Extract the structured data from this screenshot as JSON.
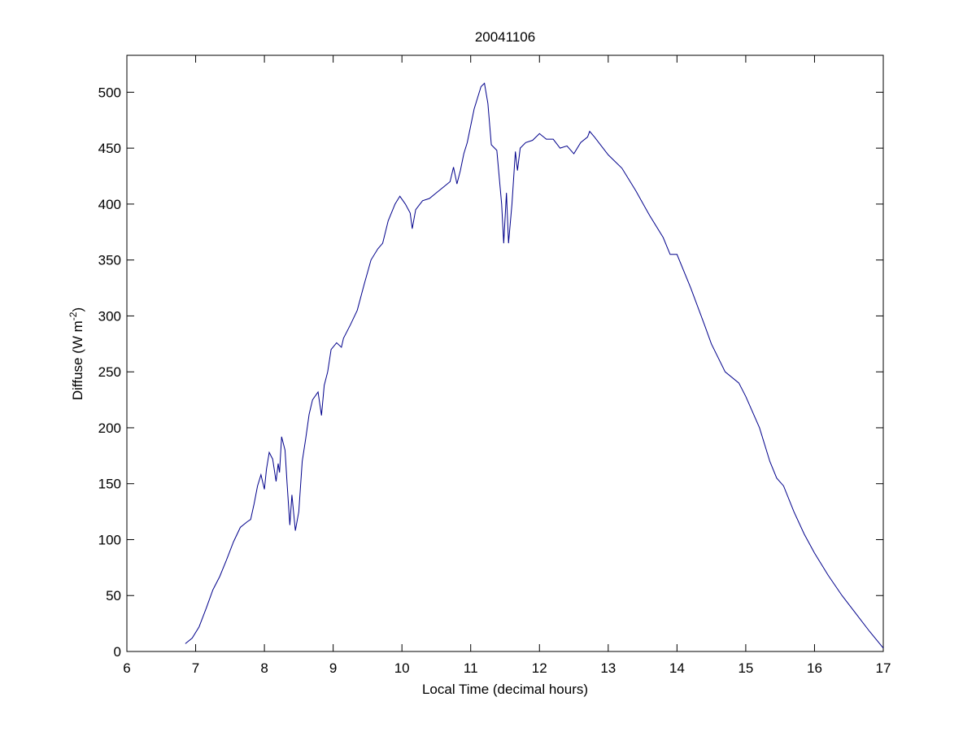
{
  "chart_data": {
    "type": "line",
    "title": "20041106",
    "xlabel": "Local Time (decimal hours)",
    "ylabel": {
      "text": "Diffuse (W m",
      "superscript": "-2",
      "suffix": ")"
    },
    "color": "#00008b",
    "x": [
      6.85,
      6.95,
      7.05,
      7.15,
      7.25,
      7.35,
      7.45,
      7.55,
      7.65,
      7.75,
      7.8,
      7.85,
      7.9,
      7.95,
      8.0,
      8.03,
      8.07,
      8.12,
      8.17,
      8.2,
      8.22,
      8.25,
      8.3,
      8.33,
      8.37,
      8.4,
      8.45,
      8.5,
      8.55,
      8.6,
      8.65,
      8.7,
      8.78,
      8.83,
      8.87,
      8.92,
      8.97,
      9.05,
      9.12,
      9.15,
      9.25,
      9.35,
      9.45,
      9.55,
      9.65,
      9.72,
      9.8,
      9.9,
      9.97,
      10.05,
      10.12,
      10.15,
      10.2,
      10.3,
      10.4,
      10.5,
      10.6,
      10.7,
      10.75,
      10.8,
      10.85,
      10.9,
      10.95,
      11.0,
      11.05,
      11.1,
      11.15,
      11.2,
      11.25,
      11.3,
      11.38,
      11.45,
      11.48,
      11.52,
      11.55,
      11.6,
      11.65,
      11.68,
      11.72,
      11.8,
      11.9,
      12.0,
      12.1,
      12.2,
      12.3,
      12.4,
      12.5,
      12.6,
      12.7,
      12.73,
      12.8,
      12.9,
      13.0,
      13.2,
      13.4,
      13.6,
      13.8,
      13.9,
      14.0,
      14.2,
      14.4,
      14.5,
      14.7,
      14.9,
      15.0,
      15.2,
      15.35,
      15.45,
      15.55,
      15.7,
      15.85,
      16.0,
      16.2,
      16.4,
      16.6,
      16.8,
      17.0
    ],
    "values": [
      7,
      12,
      22,
      38,
      55,
      67,
      82,
      98,
      111,
      116,
      118,
      132,
      148,
      158,
      145,
      163,
      178,
      172,
      152,
      168,
      160,
      192,
      180,
      150,
      113,
      140,
      108,
      125,
      170,
      190,
      212,
      225,
      232,
      211,
      238,
      250,
      270,
      276,
      272,
      280,
      292,
      305,
      328,
      350,
      360,
      365,
      385,
      400,
      407,
      400,
      392,
      378,
      395,
      403,
      405,
      410,
      415,
      420,
      433,
      418,
      430,
      445,
      455,
      470,
      485,
      495,
      505,
      508,
      490,
      453,
      448,
      400,
      365,
      410,
      365,
      400,
      447,
      430,
      450,
      455,
      457,
      463,
      458,
      458,
      450,
      452,
      445,
      455,
      460,
      465,
      460,
      452,
      444,
      432,
      412,
      390,
      370,
      355,
      355,
      325,
      292,
      275,
      250,
      240,
      228,
      200,
      170,
      155,
      148,
      125,
      105,
      88,
      68,
      50,
      34,
      18,
      3
    ],
    "xlim": [
      6,
      17
    ],
    "ylim": [
      0,
      533
    ],
    "xticks": [
      6,
      7,
      8,
      9,
      10,
      11,
      12,
      13,
      14,
      15,
      16,
      17
    ],
    "yticks": [
      0,
      50,
      100,
      150,
      200,
      250,
      300,
      350,
      400,
      450,
      500
    ]
  }
}
